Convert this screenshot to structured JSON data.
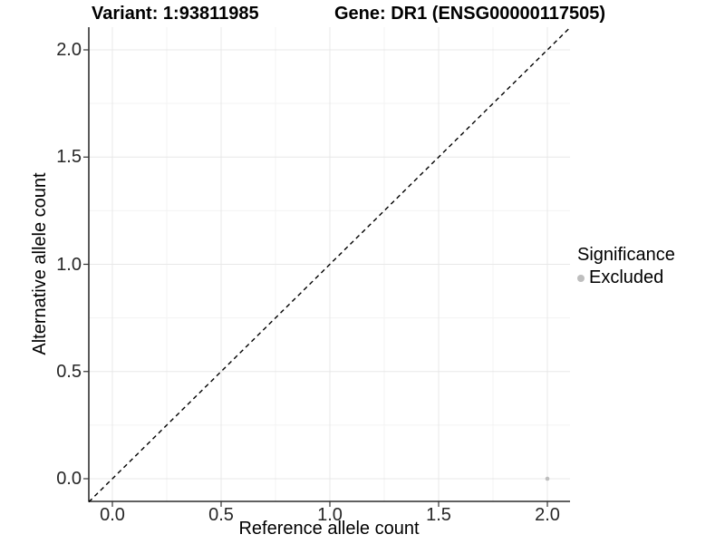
{
  "titles": {
    "variant": "Variant: 1:93811985",
    "gene": "Gene: DR1 (ENSG00000117505)"
  },
  "chart_data": {
    "type": "scatter",
    "title_left": "Variant: 1:93811985",
    "title_right": "Gene: DR1 (ENSG00000117505)",
    "xlabel": "Reference allele count",
    "ylabel": "Alternative allele count",
    "xlim": [
      -0.108,
      2.105
    ],
    "ylim": [
      -0.106,
      2.105
    ],
    "x_ticks": {
      "values": [
        0,
        0.5,
        1,
        1.5,
        2
      ],
      "labels": [
        "0.0",
        "0.5",
        "1.0",
        "1.5",
        "2.0"
      ]
    },
    "y_ticks": {
      "values": [
        0,
        0.5,
        1,
        1.5,
        2
      ],
      "labels": [
        "0.0",
        "0.5",
        "1.0",
        "1.5",
        "2.0"
      ]
    },
    "minor_tick_values": [
      0.25,
      0.75,
      1.25,
      1.75
    ],
    "grid": true,
    "points": [
      {
        "x": 2.0,
        "y": 0.0,
        "series": "Excluded"
      }
    ],
    "reference_line": {
      "type": "identity",
      "style": "dashed",
      "color": "#000000"
    },
    "legend": {
      "position": "right",
      "title": "Significance",
      "entries": [
        {
          "label": "Excluded",
          "color": "#bebebe",
          "marker": "circle"
        }
      ]
    },
    "colors": {
      "point": "#bebebe",
      "grid_major": "#e8e8e8",
      "grid_minor": "#f3f3f3",
      "axis_line": "#000000",
      "tick_mark": "#333333",
      "tick_text": "#262626",
      "background": "#ffffff"
    }
  }
}
